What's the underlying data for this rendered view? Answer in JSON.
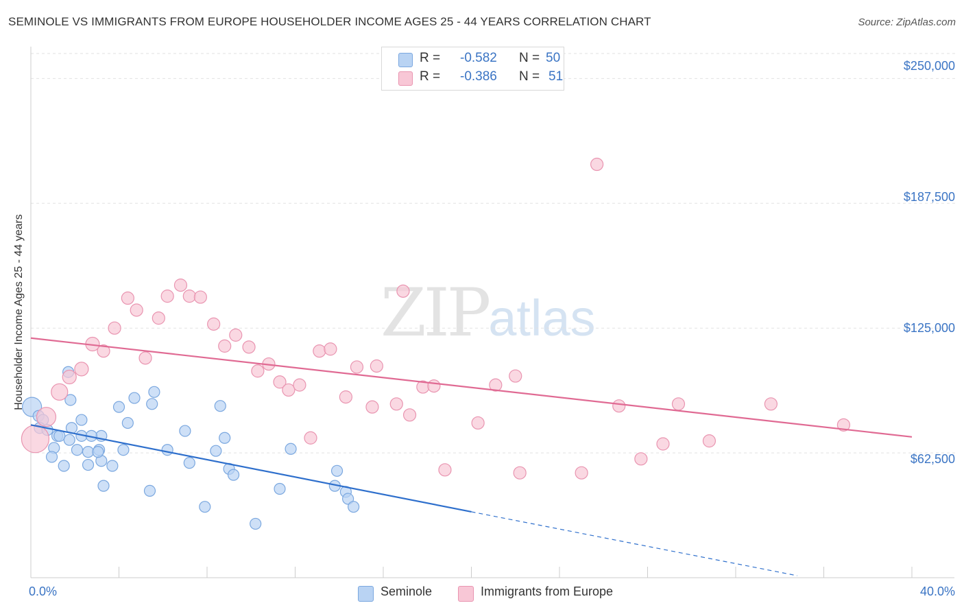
{
  "title": "SEMINOLE VS IMMIGRANTS FROM EUROPE HOUSEHOLDER INCOME AGES 25 - 44 YEARS CORRELATION CHART",
  "source": "Source: ZipAtlas.com",
  "watermark": {
    "zip": "ZIP",
    "atlas": "atlas"
  },
  "colors": {
    "seminole_fill": "#b9d3f3",
    "seminole_stroke": "#7aa7df",
    "seminole_line": "#2e6fcc",
    "europe_fill": "#f8c7d6",
    "europe_stroke": "#e994b0",
    "europe_line": "#e06a93",
    "grid": "#e2e2e2",
    "axis": "#cccccc",
    "tick_text": "#3a74c4"
  },
  "legend": {
    "rows": [
      {
        "r_label": "R =",
        "r_value": "-0.582",
        "n_label": "N =",
        "n_value": "50"
      },
      {
        "r_label": "R =",
        "r_value": "-0.386",
        "n_label": "N =",
        "n_value": "51"
      }
    ]
  },
  "chart_data": {
    "type": "scatter",
    "title": "SEMINOLE VS IMMIGRANTS FROM EUROPE HOUSEHOLDER INCOME AGES 25 - 44 YEARS CORRELATION CHART",
    "xlabel": "",
    "ylabel": "Householder Income Ages 25 - 44 years",
    "xlim": [
      0,
      40
    ],
    "ylim": [
      0,
      262500
    ],
    "x_tick_labels": [
      "0.0%",
      "40.0%"
    ],
    "y_tick_values": [
      62500,
      125000,
      187500,
      250000
    ],
    "y_tick_labels": [
      "$62,500",
      "$125,000",
      "$187,500",
      "$250,000"
    ],
    "grid": true,
    "legend_position": "top-center",
    "series": [
      {
        "name": "Seminole",
        "points": [
          [
            0.05,
            85500,
            14
          ],
          [
            0.35,
            81000,
            8
          ],
          [
            0.55,
            79000,
            8
          ],
          [
            0.4,
            75000,
            8
          ],
          [
            0.75,
            74000,
            8
          ],
          [
            1.2,
            71000,
            8
          ],
          [
            1.3,
            71000,
            8
          ],
          [
            1.85,
            75000,
            8
          ],
          [
            2.3,
            71000,
            8
          ],
          [
            1.75,
            69000,
            8
          ],
          [
            2.3,
            79000,
            8
          ],
          [
            1.7,
            103000,
            8
          ],
          [
            1.8,
            89000,
            8
          ],
          [
            1.05,
            65000,
            8
          ],
          [
            0.95,
            60500,
            8
          ],
          [
            1.5,
            56000,
            8
          ],
          [
            2.1,
            64000,
            8
          ],
          [
            2.6,
            63000,
            8
          ],
          [
            2.6,
            56500,
            8
          ],
          [
            3.1,
            64000,
            8
          ],
          [
            3.2,
            58500,
            8
          ],
          [
            3.7,
            56000,
            8
          ],
          [
            3.2,
            71000,
            8
          ],
          [
            2.75,
            71000,
            8
          ],
          [
            4.0,
            85500,
            8
          ],
          [
            4.4,
            77500,
            8
          ],
          [
            4.2,
            64000,
            8
          ],
          [
            3.3,
            46000,
            8
          ],
          [
            5.5,
            87000,
            8
          ],
          [
            5.6,
            93000,
            8
          ],
          [
            4.7,
            90000,
            8
          ],
          [
            6.2,
            64000,
            8
          ],
          [
            7.0,
            73500,
            8
          ],
          [
            7.2,
            57500,
            8
          ],
          [
            5.4,
            43500,
            8
          ],
          [
            8.6,
            86000,
            8
          ],
          [
            8.4,
            63500,
            8
          ],
          [
            8.8,
            70000,
            8
          ],
          [
            9.0,
            54500,
            8
          ],
          [
            9.2,
            51500,
            8
          ],
          [
            7.9,
            35500,
            8
          ],
          [
            10.2,
            27000,
            8
          ],
          [
            11.3,
            44500,
            8
          ],
          [
            11.8,
            64500,
            8
          ],
          [
            13.8,
            46000,
            8
          ],
          [
            13.9,
            53500,
            8
          ],
          [
            14.3,
            43000,
            8
          ],
          [
            14.4,
            39500,
            8
          ],
          [
            14.65,
            35500,
            8
          ],
          [
            3.05,
            63000,
            8
          ]
        ],
        "trend": {
          "x0": 0.0,
          "y0": 76500,
          "x1": 20.0,
          "y1": 33000,
          "dash_to_x": 34.8,
          "dash_to_y": 1000
        }
      },
      {
        "name": "Immigrants from Europe",
        "points": [
          [
            0.2,
            69500,
            20
          ],
          [
            0.7,
            80500,
            14
          ],
          [
            1.3,
            93000,
            12
          ],
          [
            1.75,
            100500,
            10
          ],
          [
            2.3,
            104500,
            10
          ],
          [
            2.8,
            117000,
            10
          ],
          [
            3.3,
            113500,
            9
          ],
          [
            3.8,
            125000,
            9
          ],
          [
            4.4,
            140000,
            9
          ],
          [
            4.8,
            134000,
            9
          ],
          [
            5.2,
            110000,
            9
          ],
          [
            5.8,
            130000,
            9
          ],
          [
            6.2,
            141000,
            9
          ],
          [
            6.8,
            146500,
            9
          ],
          [
            7.2,
            141000,
            9
          ],
          [
            7.7,
            140500,
            9
          ],
          [
            8.3,
            127000,
            9
          ],
          [
            8.8,
            116000,
            9
          ],
          [
            9.3,
            121500,
            9
          ],
          [
            9.9,
            115500,
            9
          ],
          [
            10.3,
            103500,
            9
          ],
          [
            10.8,
            107000,
            9
          ],
          [
            11.3,
            98000,
            9
          ],
          [
            11.7,
            94000,
            9
          ],
          [
            12.2,
            96500,
            9
          ],
          [
            12.7,
            70000,
            9
          ],
          [
            13.1,
            113500,
            9
          ],
          [
            13.6,
            114500,
            9
          ],
          [
            14.3,
            90500,
            9
          ],
          [
            14.8,
            105500,
            9
          ],
          [
            15.5,
            85500,
            9
          ],
          [
            15.7,
            106000,
            9
          ],
          [
            16.6,
            87000,
            9
          ],
          [
            16.9,
            143500,
            9
          ],
          [
            17.2,
            81500,
            9
          ],
          [
            17.8,
            95500,
            9
          ],
          [
            18.3,
            96000,
            9
          ],
          [
            18.8,
            54000,
            9
          ],
          [
            20.3,
            77500,
            9
          ],
          [
            21.1,
            96500,
            9
          ],
          [
            22.0,
            101000,
            9
          ],
          [
            22.2,
            52500,
            9
          ],
          [
            25.0,
            52500,
            9
          ],
          [
            25.7,
            207000,
            9
          ],
          [
            26.7,
            86000,
            9
          ],
          [
            27.7,
            59500,
            9
          ],
          [
            28.7,
            67000,
            9
          ],
          [
            29.4,
            87000,
            9
          ],
          [
            30.8,
            68500,
            9
          ],
          [
            33.6,
            87000,
            9
          ],
          [
            36.9,
            76500,
            9
          ]
        ],
        "trend": {
          "x0": 0.0,
          "y0": 120000,
          "x1": 40.0,
          "y1": 70500
        }
      }
    ]
  }
}
